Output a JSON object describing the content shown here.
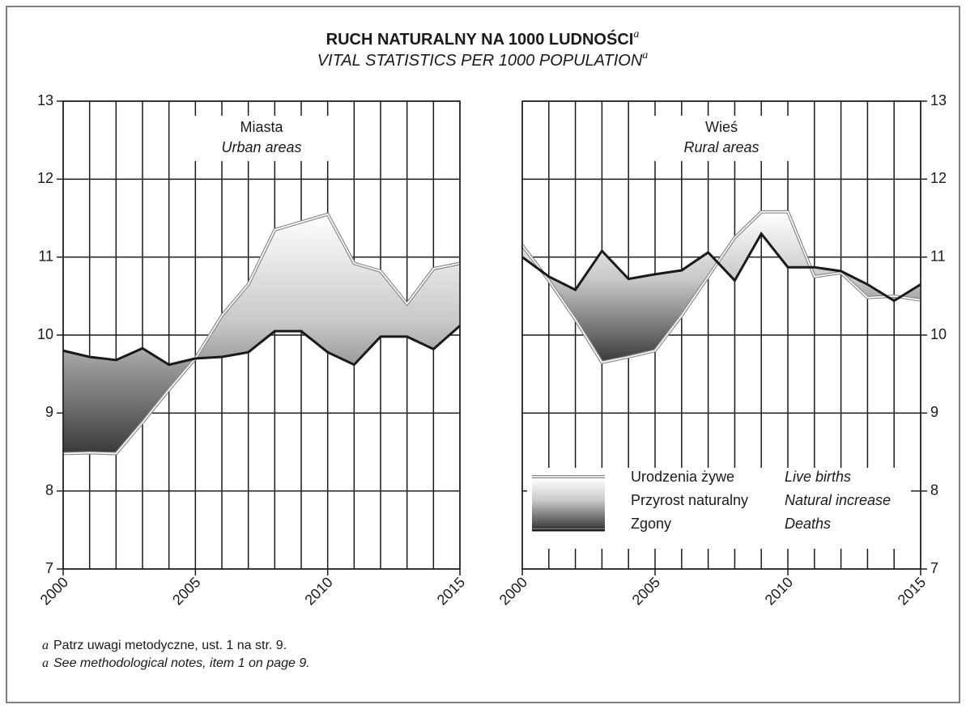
{
  "title": "RUCH NATURALNY NA 1000 LUDNOŚCI",
  "title_mark": "a",
  "subtitle": "VITAL STATISTICS PER 1000 POPULATION",
  "subtitle_mark": "a",
  "footnotes": [
    {
      "mark": "a",
      "text": "Patrz uwagi metodyczne, ust. 1 na str. 9."
    },
    {
      "mark": "a",
      "text": "See methodological notes, item 1 on page 9."
    }
  ],
  "chart_data": [
    {
      "type": "line",
      "panel_title": "Miasta",
      "panel_title_en": "Urban areas",
      "y_axis_side": "left",
      "x": [
        2000,
        2001,
        2002,
        2003,
        2004,
        2005,
        2006,
        2007,
        2008,
        2009,
        2010,
        2011,
        2012,
        2013,
        2014,
        2015
      ],
      "xlim": [
        2000,
        2015
      ],
      "xticks": [
        2000,
        2005,
        2010,
        2015
      ],
      "ylim": [
        7,
        13
      ],
      "yticks": [
        7,
        8,
        9,
        10,
        11,
        12,
        13
      ],
      "grid": true,
      "series": [
        {
          "color": "#ffffff",
          "values": [
            8.48,
            8.49,
            8.48,
            8.88,
            9.3,
            9.7,
            10.25,
            10.65,
            11.35,
            11.45,
            11.55,
            10.92,
            10.82,
            10.4,
            10.85,
            10.92
          ]
        },
        {
          "color": "#1a1a1a",
          "values": [
            9.8,
            9.72,
            9.68,
            9.83,
            9.62,
            9.7,
            9.72,
            9.78,
            10.05,
            10.05,
            9.78,
            9.62,
            9.98,
            9.98,
            9.82,
            10.12
          ]
        }
      ]
    },
    {
      "type": "line",
      "panel_title": "Wieś",
      "panel_title_en": "Rural areas",
      "y_axis_side": "right",
      "x": [
        2000,
        2001,
        2002,
        2003,
        2004,
        2005,
        2006,
        2007,
        2008,
        2009,
        2010,
        2011,
        2012,
        2013,
        2014,
        2015
      ],
      "xlim": [
        2000,
        2015
      ],
      "xticks": [
        2000,
        2005,
        2010,
        2015
      ],
      "ylim": [
        7,
        13
      ],
      "yticks": [
        7,
        8,
        9,
        10,
        11,
        12,
        13
      ],
      "grid": true,
      "legend": "bottom-right",
      "fill_label": "Przyrost naturalny",
      "fill_label_en": "Natural increase",
      "series": [
        {
          "name": "Urodzenia żywe",
          "name_en": "Live births",
          "color": "#ffffff",
          "values": [
            11.15,
            10.7,
            10.2,
            9.65,
            9.72,
            9.8,
            10.25,
            10.75,
            11.25,
            11.58,
            11.58,
            10.75,
            10.8,
            10.48,
            10.5,
            10.45
          ]
        },
        {
          "name": "Zgony",
          "name_en": "Deaths",
          "color": "#1a1a1a",
          "values": [
            11.0,
            10.75,
            10.58,
            11.08,
            10.72,
            10.78,
            10.83,
            11.06,
            10.7,
            11.3,
            10.87,
            10.87,
            10.82,
            10.65,
            10.44,
            10.65
          ]
        }
      ]
    }
  ]
}
